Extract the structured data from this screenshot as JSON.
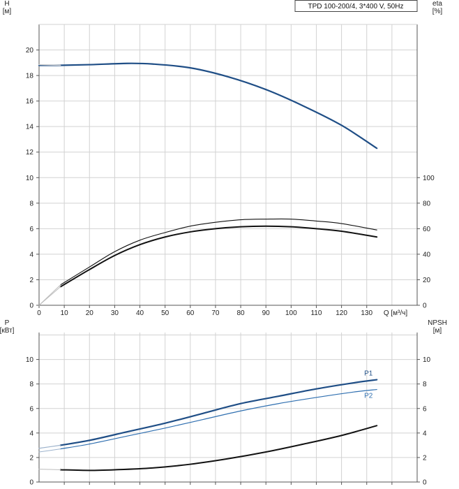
{
  "chart_data": [
    {
      "type": "line",
      "title": "TPD 100-200/4, 3*400 V, 50Hz",
      "left_axis": {
        "label_top": "H",
        "label_unit": "[м]",
        "range": [
          0,
          22
        ],
        "ticks": [
          "0",
          "2",
          "4",
          "6",
          "8",
          "10",
          "12",
          "14",
          "16",
          "18",
          "20"
        ]
      },
      "right_axis": {
        "label_top": "eta",
        "label_unit": "[%]",
        "range": [
          0,
          220
        ],
        "ticks": [
          "0",
          "20",
          "40",
          "60",
          "80",
          "100"
        ]
      },
      "x_axis": {
        "label": "Q [м³/ч]",
        "range": [
          0,
          150
        ],
        "ticks": [
          "0",
          "10",
          "20",
          "30",
          "40",
          "50",
          "60",
          "70",
          "80",
          "90",
          "100",
          "110",
          "120",
          "130"
        ]
      },
      "grid": true,
      "series": [
        {
          "axis": "left",
          "color": "#1f4e86",
          "width": 2.2,
          "x": [
            0,
            8.5,
            20,
            35,
            45,
            60,
            75,
            90,
            105,
            120,
            134
          ],
          "y": [
            18.8,
            18.8,
            18.85,
            18.95,
            18.9,
            18.6,
            17.9,
            16.9,
            15.6,
            14.1,
            12.3
          ]
        },
        {
          "axis": "left",
          "color": "#cfcfcf",
          "width": 1.4,
          "x": [
            0,
            8.5
          ],
          "y": [
            18.85,
            18.8
          ]
        },
        {
          "axis": "left",
          "color": "#111111",
          "width": 1.1,
          "x": [
            8.5,
            20,
            30,
            40,
            50,
            60,
            70,
            80,
            90,
            100,
            110,
            120,
            134
          ],
          "y": [
            1.6,
            3.0,
            4.2,
            5.1,
            5.7,
            6.2,
            6.5,
            6.7,
            6.75,
            6.75,
            6.6,
            6.4,
            5.9
          ]
        },
        {
          "axis": "left",
          "color": "#bdbdbd",
          "width": 1.0,
          "x": [
            0,
            8.5
          ],
          "y": [
            0,
            1.6
          ]
        },
        {
          "axis": "left",
          "color": "#111111",
          "width": 2.0,
          "x": [
            8.5,
            20,
            30,
            40,
            50,
            60,
            70,
            80,
            90,
            100,
            110,
            120,
            134
          ],
          "y": [
            1.45,
            2.8,
            3.9,
            4.75,
            5.35,
            5.75,
            6.0,
            6.15,
            6.2,
            6.15,
            6.0,
            5.8,
            5.35
          ]
        },
        {
          "axis": "left",
          "color": "#bdbdbd",
          "width": 1.0,
          "x": [
            0,
            8.5
          ],
          "y": [
            0,
            1.45
          ]
        }
      ]
    },
    {
      "type": "line",
      "left_axis": {
        "label_top": "P",
        "label_unit": "[кВт]",
        "range": [
          0,
          12.2
        ],
        "ticks": [
          "0",
          "2",
          "4",
          "6",
          "8",
          "10"
        ]
      },
      "right_axis": {
        "label_top": "NPSH",
        "label_unit": "[м]",
        "range": [
          0,
          12.2
        ],
        "ticks": [
          "0",
          "2",
          "4",
          "6",
          "8",
          "10"
        ]
      },
      "grid": true,
      "series": [
        {
          "name": "P1",
          "axis": "left",
          "color": "#1f4e86",
          "width": 2.2,
          "x": [
            8.5,
            20,
            35,
            50,
            65,
            80,
            95,
            110,
            125,
            134
          ],
          "y": [
            3.0,
            3.4,
            4.1,
            4.8,
            5.6,
            6.4,
            7.0,
            7.6,
            8.1,
            8.35
          ]
        },
        {
          "axis": "left",
          "color": "#9db3cc",
          "width": 1.2,
          "x": [
            0,
            8.5
          ],
          "y": [
            2.75,
            3.0
          ]
        },
        {
          "name": "P2",
          "axis": "left",
          "color": "#2f6fb0",
          "width": 1.2,
          "x": [
            8.5,
            20,
            35,
            50,
            65,
            80,
            95,
            110,
            125,
            134
          ],
          "y": [
            2.7,
            3.1,
            3.75,
            4.4,
            5.1,
            5.8,
            6.4,
            6.9,
            7.35,
            7.55
          ]
        },
        {
          "axis": "left",
          "color": "#9db3cc",
          "width": 1.0,
          "x": [
            0,
            8.5
          ],
          "y": [
            2.45,
            2.7
          ]
        },
        {
          "axis": "right",
          "color": "#111111",
          "width": 2.0,
          "x": [
            8.5,
            20,
            30,
            45,
            60,
            75,
            90,
            105,
            120,
            134
          ],
          "y": [
            1.0,
            0.95,
            1.0,
            1.15,
            1.45,
            1.9,
            2.45,
            3.1,
            3.8,
            4.6
          ]
        },
        {
          "axis": "right",
          "color": "#bdbdbd",
          "width": 1.0,
          "x": [
            0,
            8.5
          ],
          "y": [
            1.05,
            1.0
          ]
        }
      ]
    }
  ]
}
